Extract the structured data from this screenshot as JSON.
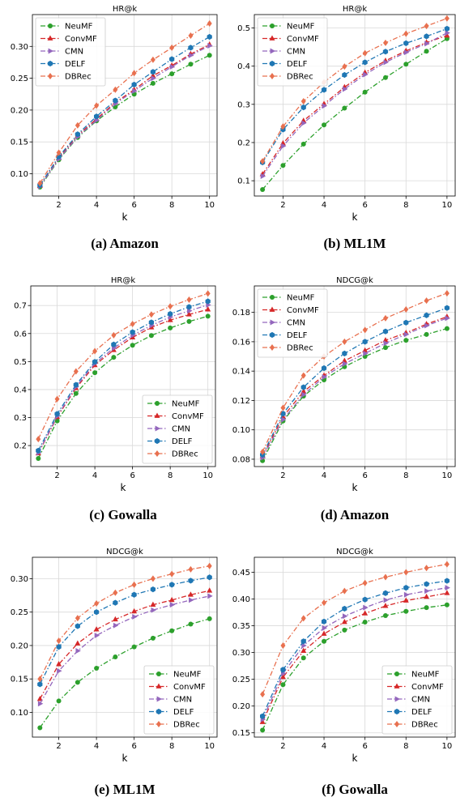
{
  "colors": {
    "NeuMF": "#2ca02c",
    "ConvMF": "#d62728",
    "CMN": "#9467bd",
    "DELF": "#1f77b4",
    "DBRec": "#e8704f"
  },
  "chart_data": [
    {
      "type": "line",
      "title": "HR@k",
      "xlabel": "k",
      "ylabel": "",
      "caption": "(a) Amazon",
      "xlim": [
        0.6,
        10.4
      ],
      "ylim": [
        0.065,
        0.35
      ],
      "xticks": [
        2,
        4,
        6,
        8,
        10
      ],
      "yticks": [
        0.1,
        0.15,
        0.2,
        0.25,
        0.3
      ],
      "ytick_labels": [
        "0.10",
        "0.15",
        "0.20",
        "0.25",
        "0.30"
      ],
      "legend": "top-left",
      "grid": true,
      "x": [
        1,
        2,
        3,
        4,
        5,
        6,
        7,
        8,
        9,
        10
      ],
      "series": [
        {
          "name": "NeuMF",
          "marker": "circle",
          "values": [
            0.079,
            0.122,
            0.157,
            0.183,
            0.205,
            0.225,
            0.242,
            0.257,
            0.272,
            0.286
          ]
        },
        {
          "name": "ConvMF",
          "marker": "triangle-up",
          "values": [
            0.081,
            0.125,
            0.16,
            0.186,
            0.212,
            0.232,
            0.254,
            0.27,
            0.288,
            0.303
          ]
        },
        {
          "name": "CMN",
          "marker": "triangle-right",
          "values": [
            0.08,
            0.123,
            0.158,
            0.184,
            0.21,
            0.23,
            0.25,
            0.268,
            0.286,
            0.301
          ]
        },
        {
          "name": "DELF",
          "marker": "hexagon",
          "values": [
            0.082,
            0.127,
            0.162,
            0.19,
            0.215,
            0.24,
            0.26,
            0.28,
            0.298,
            0.315
          ]
        },
        {
          "name": "DBRec",
          "marker": "diamond",
          "values": [
            0.085,
            0.133,
            0.176,
            0.207,
            0.232,
            0.258,
            0.279,
            0.298,
            0.317,
            0.336
          ]
        }
      ]
    },
    {
      "type": "line",
      "title": "HR@k",
      "xlabel": "k",
      "ylabel": "",
      "caption": "(b) ML1M",
      "xlim": [
        0.6,
        10.4
      ],
      "ylim": [
        0.06,
        0.535
      ],
      "xticks": [
        2,
        4,
        6,
        8,
        10
      ],
      "yticks": [
        0.1,
        0.2,
        0.3,
        0.4,
        0.5
      ],
      "ytick_labels": [
        "0.1",
        "0.2",
        "0.3",
        "0.4",
        "0.5"
      ],
      "legend": "top-left",
      "grid": true,
      "x": [
        1,
        2,
        3,
        4,
        5,
        6,
        7,
        8,
        9,
        10
      ],
      "series": [
        {
          "name": "NeuMF",
          "marker": "circle",
          "values": [
            0.077,
            0.14,
            0.196,
            0.246,
            0.29,
            0.332,
            0.37,
            0.405,
            0.439,
            0.472
          ]
        },
        {
          "name": "ConvMF",
          "marker": "triangle-up",
          "values": [
            0.117,
            0.198,
            0.257,
            0.301,
            0.345,
            0.383,
            0.414,
            0.44,
            0.462,
            0.48
          ]
        },
        {
          "name": "CMN",
          "marker": "triangle-right",
          "values": [
            0.112,
            0.191,
            0.251,
            0.296,
            0.34,
            0.378,
            0.41,
            0.436,
            0.459,
            0.487
          ]
        },
        {
          "name": "DELF",
          "marker": "hexagon",
          "values": [
            0.148,
            0.234,
            0.292,
            0.338,
            0.377,
            0.41,
            0.438,
            0.46,
            0.478,
            0.498
          ]
        },
        {
          "name": "DBRec",
          "marker": "diamond",
          "values": [
            0.151,
            0.242,
            0.308,
            0.358,
            0.399,
            0.434,
            0.461,
            0.485,
            0.505,
            0.525
          ]
        }
      ]
    },
    {
      "type": "line",
      "title": "HR@k",
      "xlabel": "k",
      "ylabel": "",
      "caption": "(c) Gowalla",
      "xlim": [
        0.6,
        10.4
      ],
      "ylim": [
        0.125,
        0.77
      ],
      "xticks": [
        2,
        4,
        6,
        8,
        10
      ],
      "yticks": [
        0.2,
        0.3,
        0.4,
        0.5,
        0.6,
        0.7
      ],
      "ytick_labels": [
        "0.2",
        "0.3",
        "0.4",
        "0.5",
        "0.6",
        "0.7"
      ],
      "legend": "bottom-right",
      "grid": true,
      "x": [
        1,
        2,
        3,
        4,
        5,
        6,
        7,
        8,
        9,
        10
      ],
      "series": [
        {
          "name": "NeuMF",
          "marker": "circle",
          "values": [
            0.154,
            0.288,
            0.386,
            0.46,
            0.515,
            0.558,
            0.593,
            0.62,
            0.643,
            0.662
          ]
        },
        {
          "name": "ConvMF",
          "marker": "triangle-up",
          "values": [
            0.172,
            0.302,
            0.405,
            0.487,
            0.541,
            0.586,
            0.622,
            0.648,
            0.668,
            0.686
          ]
        },
        {
          "name": "CMN",
          "marker": "triangle-right",
          "values": [
            0.174,
            0.305,
            0.41,
            0.493,
            0.548,
            0.594,
            0.629,
            0.659,
            0.681,
            0.702
          ]
        },
        {
          "name": "DELF",
          "marker": "hexagon",
          "values": [
            0.182,
            0.313,
            0.417,
            0.499,
            0.561,
            0.605,
            0.64,
            0.67,
            0.695,
            0.715
          ]
        },
        {
          "name": "DBRec",
          "marker": "diamond",
          "values": [
            0.223,
            0.366,
            0.465,
            0.537,
            0.594,
            0.634,
            0.668,
            0.697,
            0.721,
            0.743
          ]
        }
      ]
    },
    {
      "type": "line",
      "title": "NDCG@k",
      "xlabel": "k",
      "ylabel": "",
      "caption": "(d) Amazon",
      "xlim": [
        0.6,
        10.4
      ],
      "ylim": [
        0.075,
        0.198
      ],
      "xticks": [
        2,
        4,
        6,
        8,
        10
      ],
      "yticks": [
        0.08,
        0.1,
        0.12,
        0.14,
        0.16,
        0.18
      ],
      "ytick_labels": [
        "0.08",
        "0.10",
        "0.12",
        "0.14",
        "0.16",
        "0.18"
      ],
      "legend": "top-left",
      "grid": true,
      "x": [
        1,
        2,
        3,
        4,
        5,
        6,
        7,
        8,
        9,
        10
      ],
      "series": [
        {
          "name": "NeuMF",
          "marker": "circle",
          "values": [
            0.079,
            0.106,
            0.123,
            0.134,
            0.143,
            0.15,
            0.156,
            0.161,
            0.165,
            0.169
          ]
        },
        {
          "name": "ConvMF",
          "marker": "triangle-up",
          "values": [
            0.082,
            0.109,
            0.126,
            0.137,
            0.147,
            0.154,
            0.161,
            0.166,
            0.172,
            0.177
          ]
        },
        {
          "name": "CMN",
          "marker": "triangle-right",
          "values": [
            0.081,
            0.107,
            0.124,
            0.136,
            0.145,
            0.152,
            0.159,
            0.165,
            0.171,
            0.176
          ]
        },
        {
          "name": "DELF",
          "marker": "hexagon",
          "values": [
            0.083,
            0.111,
            0.129,
            0.142,
            0.152,
            0.16,
            0.167,
            0.173,
            0.178,
            0.183
          ]
        },
        {
          "name": "DBRec",
          "marker": "diamond",
          "values": [
            0.085,
            0.115,
            0.137,
            0.15,
            0.16,
            0.168,
            0.176,
            0.182,
            0.188,
            0.193
          ]
        }
      ]
    },
    {
      "type": "line",
      "title": "NDCG@k",
      "xlabel": "k",
      "ylabel": "",
      "caption": "(e) ML1M",
      "xlim": [
        0.6,
        10.4
      ],
      "ylim": [
        0.063,
        0.332
      ],
      "xticks": [
        2,
        4,
        6,
        8,
        10
      ],
      "yticks": [
        0.1,
        0.15,
        0.2,
        0.25,
        0.3
      ],
      "ytick_labels": [
        "0.10",
        "0.15",
        "0.20",
        "0.25",
        "0.30"
      ],
      "legend": "bottom-right",
      "grid": true,
      "x": [
        1,
        2,
        3,
        4,
        5,
        6,
        7,
        8,
        9,
        10
      ],
      "series": [
        {
          "name": "NeuMF",
          "marker": "circle",
          "values": [
            0.077,
            0.117,
            0.145,
            0.166,
            0.183,
            0.198,
            0.211,
            0.222,
            0.232,
            0.24
          ]
        },
        {
          "name": "ConvMF",
          "marker": "triangle-up",
          "values": [
            0.12,
            0.172,
            0.203,
            0.224,
            0.239,
            0.251,
            0.261,
            0.268,
            0.276,
            0.282
          ]
        },
        {
          "name": "CMN",
          "marker": "triangle-right",
          "values": [
            0.113,
            0.162,
            0.192,
            0.215,
            0.23,
            0.243,
            0.253,
            0.261,
            0.268,
            0.274
          ]
        },
        {
          "name": "DELF",
          "marker": "hexagon",
          "values": [
            0.142,
            0.198,
            0.229,
            0.25,
            0.264,
            0.276,
            0.284,
            0.291,
            0.297,
            0.302
          ]
        },
        {
          "name": "DBRec",
          "marker": "diamond",
          "values": [
            0.15,
            0.207,
            0.241,
            0.263,
            0.279,
            0.291,
            0.3,
            0.307,
            0.314,
            0.319
          ]
        }
      ]
    },
    {
      "type": "line",
      "title": "NDCG@k",
      "xlabel": "k",
      "ylabel": "",
      "caption": "(f) Gowalla",
      "xlim": [
        0.6,
        10.4
      ],
      "ylim": [
        0.142,
        0.478
      ],
      "xticks": [
        2,
        4,
        6,
        8,
        10
      ],
      "yticks": [
        0.15,
        0.2,
        0.25,
        0.3,
        0.35,
        0.4,
        0.45
      ],
      "ytick_labels": [
        "0.15",
        "0.20",
        "0.25",
        "0.30",
        "0.35",
        "0.40",
        "0.45"
      ],
      "legend": "bottom-right",
      "grid": true,
      "x": [
        1,
        2,
        3,
        4,
        5,
        6,
        7,
        8,
        9,
        10
      ],
      "series": [
        {
          "name": "NeuMF",
          "marker": "circle",
          "values": [
            0.155,
            0.24,
            0.29,
            0.321,
            0.342,
            0.357,
            0.369,
            0.377,
            0.384,
            0.389
          ]
        },
        {
          "name": "ConvMF",
          "marker": "triangle-up",
          "values": [
            0.17,
            0.254,
            0.303,
            0.335,
            0.357,
            0.373,
            0.387,
            0.397,
            0.404,
            0.411
          ]
        },
        {
          "name": "CMN",
          "marker": "triangle-right",
          "values": [
            0.175,
            0.261,
            0.313,
            0.346,
            0.368,
            0.384,
            0.398,
            0.408,
            0.415,
            0.421
          ]
        },
        {
          "name": "DELF",
          "marker": "hexagon",
          "values": [
            0.181,
            0.268,
            0.321,
            0.358,
            0.382,
            0.399,
            0.411,
            0.421,
            0.428,
            0.434
          ]
        },
        {
          "name": "DBRec",
          "marker": "diamond",
          "values": [
            0.222,
            0.313,
            0.364,
            0.393,
            0.415,
            0.43,
            0.441,
            0.45,
            0.458,
            0.465
          ]
        }
      ]
    }
  ]
}
